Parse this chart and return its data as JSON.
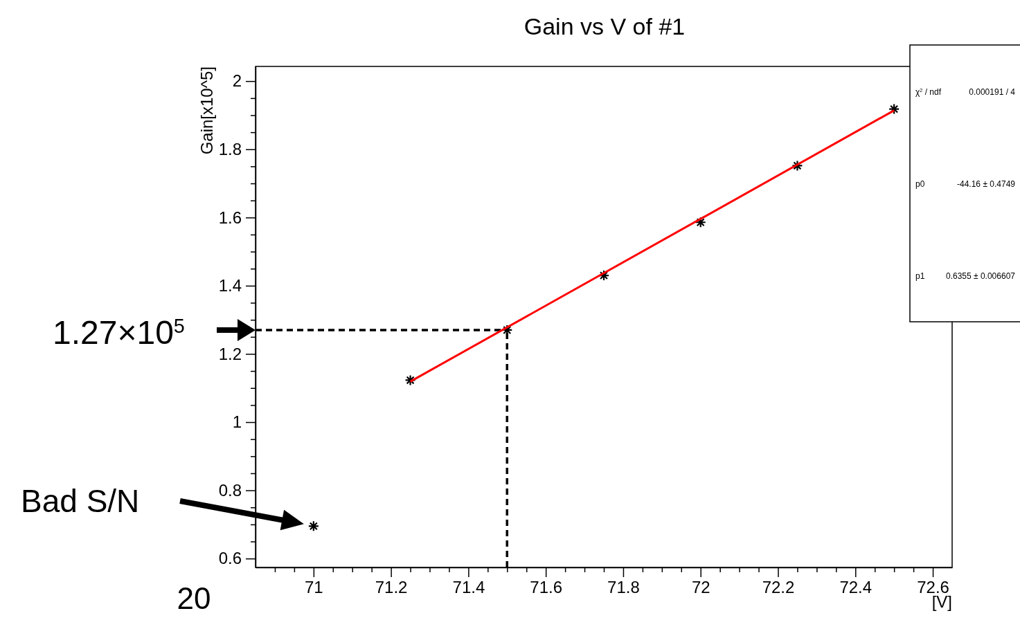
{
  "chart_data": {
    "type": "scatter",
    "title": "Gain vs V of #1",
    "xlabel": "[V]",
    "ylabel": "Gain[x10^5]",
    "xlim": [
      70.85,
      72.65
    ],
    "ylim": [
      0.574,
      2.043
    ],
    "xticks": [
      {
        "value": 70.9,
        "label": null
      },
      {
        "value": 70.95,
        "label": null
      },
      71,
      {
        "value": 71.05,
        "label": null
      },
      {
        "value": 71.1,
        "label": null
      },
      {
        "value": 71.15,
        "label": null
      },
      71.2,
      {
        "value": 71.25,
        "label": null
      },
      {
        "value": 71.3,
        "label": null
      },
      {
        "value": 71.35,
        "label": null
      },
      71.4,
      {
        "value": 71.45,
        "label": null
      },
      {
        "value": 71.5,
        "label": null
      },
      {
        "value": 71.55,
        "label": null
      },
      71.6,
      {
        "value": 71.65,
        "label": null
      },
      {
        "value": 71.7,
        "label": null
      },
      {
        "value": 71.75,
        "label": null
      },
      71.8,
      {
        "value": 71.85,
        "label": null
      },
      {
        "value": 71.9,
        "label": null
      },
      {
        "value": 71.95,
        "label": null
      },
      72,
      {
        "value": 72.05,
        "label": null
      },
      {
        "value": 72.1,
        "label": null
      },
      {
        "value": 72.15,
        "label": null
      },
      72.2,
      {
        "value": 72.25,
        "label": null
      },
      {
        "value": 72.3,
        "label": null
      },
      {
        "value": 72.35,
        "label": null
      },
      72.4,
      {
        "value": 72.45,
        "label": null
      },
      {
        "value": 72.5,
        "label": null
      },
      {
        "value": 72.55,
        "label": null
      },
      72.6
    ],
    "yticks": [
      0.6,
      {
        "value": 0.65,
        "label": null
      },
      {
        "value": 0.7,
        "label": null
      },
      {
        "value": 0.75,
        "label": null
      },
      0.8,
      {
        "value": 0.85,
        "label": null
      },
      {
        "value": 0.9,
        "label": null
      },
      {
        "value": 0.95,
        "label": null
      },
      1,
      {
        "value": 1.05,
        "label": null
      },
      {
        "value": 1.1,
        "label": null
      },
      {
        "value": 1.15,
        "label": null
      },
      1.2,
      {
        "value": 1.25,
        "label": null
      },
      {
        "value": 1.3,
        "label": null
      },
      {
        "value": 1.35,
        "label": null
      },
      1.4,
      {
        "value": 1.45,
        "label": null
      },
      {
        "value": 1.5,
        "label": null
      },
      {
        "value": 1.55,
        "label": null
      },
      1.6,
      {
        "value": 1.65,
        "label": null
      },
      {
        "value": 1.7,
        "label": null
      },
      {
        "value": 1.75,
        "label": null
      },
      1.8,
      {
        "value": 1.85,
        "label": null
      },
      {
        "value": 1.9,
        "label": null
      },
      {
        "value": 1.95,
        "label": null
      },
      2
    ],
    "ref_lines": [
      {
        "axis": "y",
        "value": 1.27,
        "line_style": "dashed"
      },
      {
        "axis": "x",
        "value": 71.5,
        "line_style": "dashed"
      }
    ],
    "marker": "star",
    "grid": false,
    "series": [
      {
        "type": "scatter",
        "color": "#000000",
        "x": [
          71,
          71.25,
          71.5,
          71.75,
          72,
          72.25,
          72.5
        ],
        "values": [
          0.695,
          1.123,
          1.27,
          1.43,
          1.586,
          1.752,
          1.918
        ]
      },
      {
        "type": "line",
        "color": "#ff0000",
        "marker": "none",
        "line_style": "solid",
        "x": [
          71.25,
          72.5
        ],
        "values": [
          1.119,
          1.914
        ]
      }
    ],
    "annotations": [
      "1.27×10$^{5}$",
      "Bad S/N",
      "χ$^{2}$ / ndf",
      "0.000191 / 4",
      "p0",
      "-44.16 ± 0.4749",
      "p1",
      "0.6355 ± 0.006607",
      "20"
    ]
  }
}
